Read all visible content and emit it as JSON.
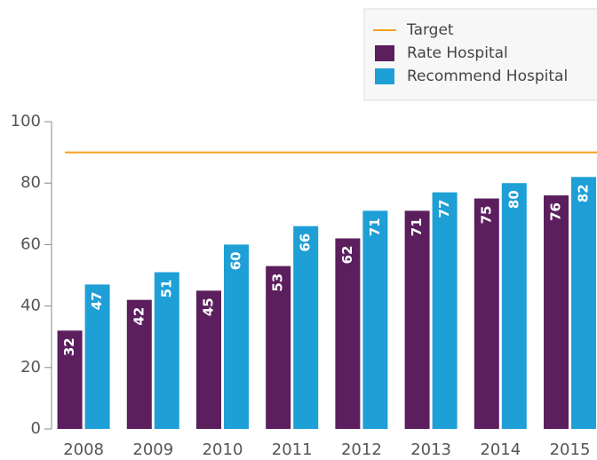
{
  "chart_data": {
    "type": "bar",
    "categories": [
      "2008",
      "2009",
      "2010",
      "2011",
      "2012",
      "2013",
      "2014",
      "2015"
    ],
    "series": [
      {
        "name": "Rate Hospital",
        "color": "#5b1f5e",
        "values": [
          32,
          42,
          45,
          53,
          62,
          71,
          75,
          76
        ]
      },
      {
        "name": "Recommend Hospital",
        "color": "#1e9fd6",
        "values": [
          47,
          51,
          60,
          66,
          71,
          77,
          80,
          82
        ]
      }
    ],
    "target": {
      "name": "Target",
      "value": 90,
      "color": "#f5a01e"
    },
    "ylim": [
      0,
      100
    ],
    "yticks": [
      0,
      20,
      40,
      60,
      80,
      100
    ],
    "legend": "top-right"
  }
}
